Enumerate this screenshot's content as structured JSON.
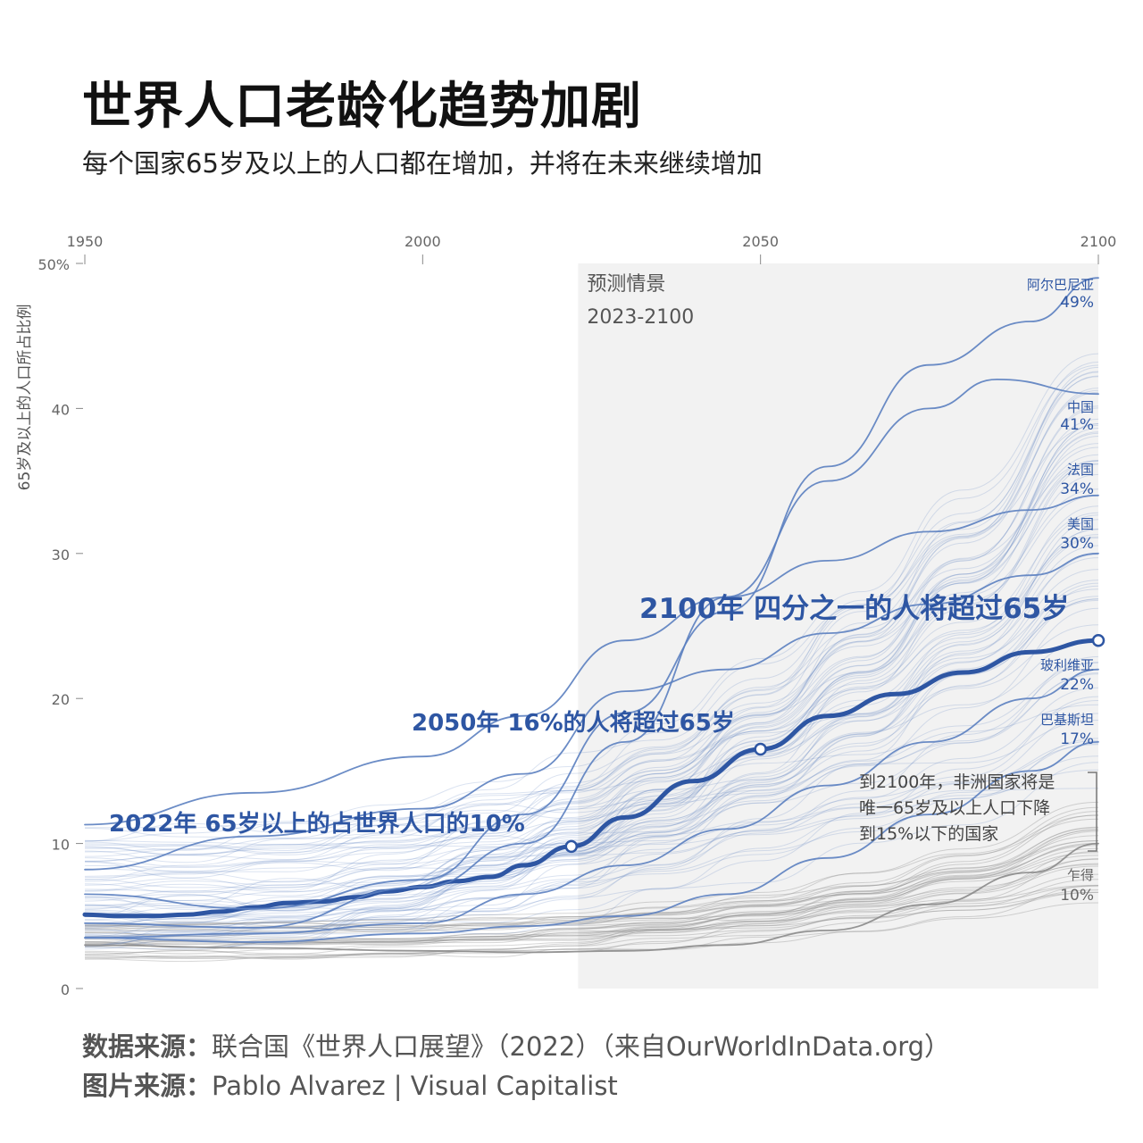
{
  "title": "世界人口老龄化趋势加剧",
  "subtitle": "每个国家65岁及以上的人口都在增加，并将在未来继续增加",
  "colors": {
    "world_line": "#2e56a3",
    "country_lines": "#5b7fc0",
    "africa_lines": "#8a8a8a",
    "projection_bg": "#f2f2f2",
    "annotation_text": "#2e56a3"
  },
  "chart_data": {
    "type": "line",
    "title": "世界人口老龄化趋势加剧",
    "ylabel": "65岁及以上的人口所占比例",
    "xlabel": "",
    "x_ticks": [
      "1950",
      "2000",
      "2050",
      "2100"
    ],
    "y_ticks": [
      "50%",
      "40",
      "30",
      "20",
      "10",
      "0"
    ],
    "xlim": [
      1950,
      2100
    ],
    "ylim": [
      0,
      50
    ],
    "projection": {
      "label": "预测情景",
      "range_label": "2023-2100",
      "start": 2023,
      "end": 2100
    },
    "series": [
      {
        "name": "世界",
        "x": [
          1950,
          1955,
          1960,
          1965,
          1970,
          1975,
          1980,
          1985,
          1990,
          1995,
          2000,
          2005,
          2010,
          2015,
          2022,
          2030,
          2040,
          2050,
          2060,
          2070,
          2080,
          2090,
          2100
        ],
        "values": [
          5.1,
          5.0,
          5.0,
          5.1,
          5.3,
          5.6,
          5.9,
          6.0,
          6.3,
          6.7,
          7.0,
          7.4,
          7.7,
          8.5,
          9.8,
          11.8,
          14.3,
          16.5,
          18.8,
          20.3,
          21.8,
          23.2,
          24.0
        ]
      },
      {
        "name": "阿尔巴尼亚",
        "x": [
          1950,
          1975,
          2000,
          2015,
          2030,
          2045,
          2060,
          2075,
          2090,
          2100
        ],
        "values": [
          6.5,
          5.5,
          7.5,
          12.0,
          19.0,
          26.0,
          36.0,
          43.0,
          46.0,
          49.0
        ]
      },
      {
        "name": "中国",
        "x": [
          1950,
          1975,
          2000,
          2015,
          2030,
          2045,
          2060,
          2075,
          2085,
          2100
        ],
        "values": [
          4.5,
          4.2,
          7.0,
          10.0,
          17.0,
          27.0,
          35.0,
          40.0,
          42.0,
          41.0
        ]
      },
      {
        "name": "法国",
        "x": [
          1950,
          1975,
          2000,
          2015,
          2030,
          2045,
          2060,
          2075,
          2090,
          2100
        ],
        "values": [
          11.3,
          13.5,
          16.0,
          18.8,
          24.0,
          27.0,
          29.5,
          31.5,
          33.0,
          34.0
        ]
      },
      {
        "name": "美国",
        "x": [
          1950,
          1975,
          2000,
          2015,
          2030,
          2045,
          2060,
          2075,
          2090,
          2100
        ],
        "values": [
          8.2,
          10.5,
          12.4,
          14.8,
          20.5,
          22.0,
          24.5,
          26.5,
          28.5,
          30.0
        ]
      },
      {
        "name": "玻利维亚",
        "x": [
          1950,
          1975,
          2000,
          2015,
          2030,
          2045,
          2060,
          2075,
          2090,
          2100
        ],
        "values": [
          3.5,
          3.8,
          4.5,
          6.5,
          8.5,
          11.0,
          14.0,
          17.0,
          20.0,
          22.0
        ]
      },
      {
        "name": "巴基斯坦",
        "x": [
          1950,
          1975,
          2000,
          2015,
          2030,
          2045,
          2060,
          2075,
          2090,
          2100
        ],
        "values": [
          3.5,
          3.2,
          3.8,
          4.3,
          5.0,
          6.5,
          9.0,
          12.0,
          15.0,
          17.0
        ]
      },
      {
        "name": "乍得",
        "x": [
          1950,
          1975,
          2000,
          2015,
          2030,
          2045,
          2060,
          2075,
          2090,
          2100
        ],
        "values": [
          3.0,
          2.8,
          2.6,
          2.5,
          2.6,
          3.0,
          4.0,
          5.8,
          8.0,
          10.0
        ]
      }
    ],
    "points": [
      {
        "x": 2022,
        "y": 9.8,
        "label": "2022年 65岁以上的占世界人口的10%"
      },
      {
        "x": 2050,
        "y": 16.5,
        "label": "2050年 16%的人将超过65岁"
      },
      {
        "x": 2100,
        "y": 24.0,
        "label": "2100年 四分之一的人将超过65岁"
      }
    ],
    "end_labels": [
      {
        "name": "阿尔巴尼亚",
        "value": "49%"
      },
      {
        "name": "中国",
        "value": "41%"
      },
      {
        "name": "法国",
        "value": "34%"
      },
      {
        "name": "美国",
        "value": "30%"
      },
      {
        "name": "玻利维亚",
        "value": "22%"
      },
      {
        "name": "巴基斯坦",
        "value": "17%"
      },
      {
        "name": "乍得",
        "value": "10%"
      }
    ],
    "africa_note": [
      "到2100年，非洲国家将是",
      "唯一65岁及以上人口下降",
      "到15%以下的国家"
    ]
  },
  "footer": {
    "source_key": "数据来源：",
    "source_value": "联合国《世界人口展望》（2022）（来自OurWorldInData.org）",
    "image_key": "图片来源：",
    "image_value": "Pablo Alvarez | Visual Capitalist"
  }
}
